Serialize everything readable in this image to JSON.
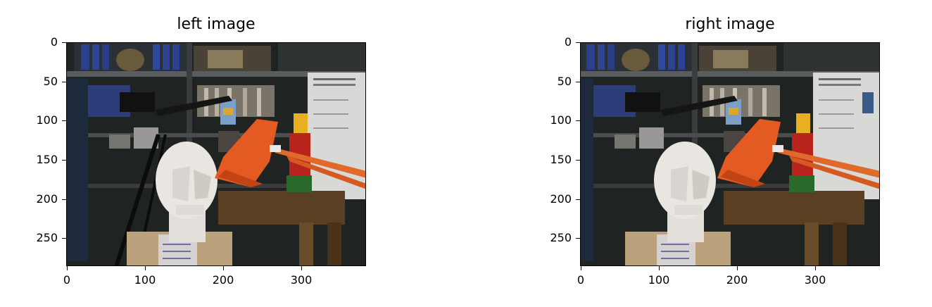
{
  "panels": [
    {
      "title": "left image",
      "yticks": [
        "0",
        "50",
        "100",
        "150",
        "200",
        "250"
      ],
      "xticks": [
        "0",
        "100",
        "200",
        "300"
      ],
      "image_icon": "stereo-scene-left"
    },
    {
      "title": "right image",
      "yticks": [
        "0",
        "50",
        "100",
        "150",
        "200",
        "250"
      ],
      "xticks": [
        "0",
        "100",
        "200",
        "300"
      ],
      "image_icon": "stereo-scene-right"
    }
  ],
  "colors": {
    "background": "#ffffff",
    "lamp": "#e35a22",
    "bust": "#e9e6e2",
    "scene_dark": "#1f2322",
    "shelf": "#3a3c3a",
    "table": "#5a3f22",
    "box": "#bca27c",
    "poster": "#d8d8d6"
  }
}
